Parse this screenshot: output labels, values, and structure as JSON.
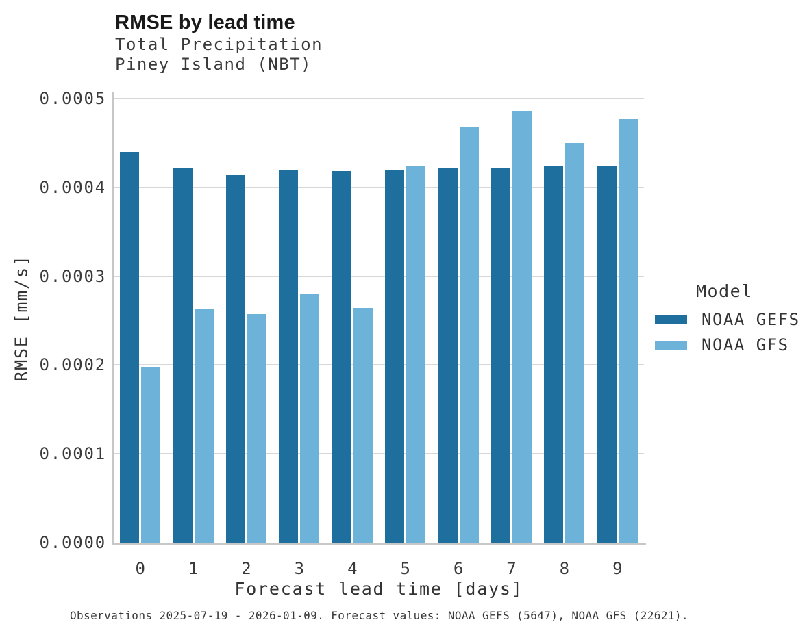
{
  "header": {
    "title": "RMSE by lead time",
    "subtitle_line1": "Total Precipitation",
    "subtitle_line2": "Piney Island (NBT)"
  },
  "chart_data": {
    "type": "bar",
    "categories": [
      "0",
      "1",
      "2",
      "3",
      "4",
      "5",
      "6",
      "7",
      "8",
      "9"
    ],
    "series": [
      {
        "name": "NOAA GEFS",
        "color": "#1f6f9e",
        "values": [
          0.00044,
          0.000422,
          0.000414,
          0.00042,
          0.000418,
          0.000419,
          0.000422,
          0.000422,
          0.000424,
          0.000424
        ]
      },
      {
        "name": "NOAA GFS",
        "color": "#6db2d9",
        "values": [
          0.000198,
          0.000263,
          0.000257,
          0.00028,
          0.000264,
          0.000424,
          0.000468,
          0.000486,
          0.00045,
          0.000477
        ]
      }
    ],
    "title": "RMSE by lead time",
    "xlabel": "Forecast lead time [days]",
    "ylabel": "RMSE [mm/s]",
    "ylim": [
      0,
      0.0005
    ],
    "yticks": [
      "0.0000",
      "0.0001",
      "0.0002",
      "0.0003",
      "0.0004",
      "0.0005"
    ],
    "ytick_values": [
      0,
      0.0001,
      0.0002,
      0.0003,
      0.0004,
      0.0005
    ],
    "grid": "horizontal",
    "legend": {
      "title": "Model",
      "position": "right"
    }
  },
  "caption": "Observations 2025-07-19 - 2026-01-09. Forecast values: NOAA GEFS (5647), NOAA GFS (22621)."
}
